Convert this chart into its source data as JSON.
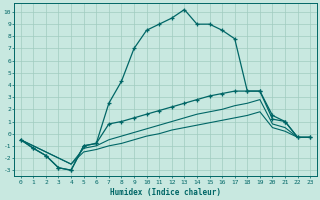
{
  "xlabel": "Humidex (Indice chaleur)",
  "bg_color": "#c8e8e0",
  "line_color": "#006666",
  "grid_color": "#a0ccc0",
  "xlim": [
    -0.5,
    23.5
  ],
  "ylim": [
    -3.5,
    10.7
  ],
  "xticks": [
    0,
    1,
    2,
    3,
    4,
    5,
    6,
    7,
    8,
    9,
    10,
    11,
    12,
    13,
    14,
    15,
    16,
    17,
    18,
    19,
    20,
    21,
    22,
    23
  ],
  "yticks": [
    -3,
    -2,
    -1,
    0,
    1,
    2,
    3,
    4,
    5,
    6,
    7,
    8,
    9,
    10
  ],
  "line1_x": [
    0,
    1,
    2,
    3,
    4,
    5,
    6,
    7,
    8,
    9,
    10,
    11,
    12,
    13,
    14,
    15,
    16,
    17,
    18,
    19,
    20,
    21,
    22,
    23
  ],
  "line1_y": [
    -0.5,
    -1.2,
    -1.8,
    -2.8,
    -3.0,
    -1.0,
    -0.8,
    2.5,
    4.3,
    7.0,
    8.5,
    9.0,
    9.5,
    10.2,
    9.0,
    9.0,
    8.5,
    7.8,
    3.5,
    3.5,
    1.5,
    1.0,
    -0.3,
    -0.3
  ],
  "line2_x": [
    0,
    1,
    2,
    3,
    4,
    5,
    6,
    7,
    8,
    9,
    10,
    11,
    12,
    13,
    14,
    15,
    16,
    17,
    18,
    19,
    20,
    21,
    22,
    23
  ],
  "line2_y": [
    -0.5,
    -1.2,
    -1.8,
    -2.8,
    -3.0,
    -1.0,
    -0.8,
    0.8,
    1.0,
    1.3,
    1.6,
    1.9,
    2.2,
    2.5,
    2.8,
    3.1,
    3.3,
    3.5,
    3.5,
    3.5,
    1.2,
    1.0,
    -0.3,
    -0.3
  ],
  "line3_x": [
    0,
    2,
    4,
    5,
    6,
    7,
    8,
    9,
    10,
    11,
    12,
    13,
    14,
    15,
    16,
    17,
    18,
    19,
    20,
    21,
    22,
    23
  ],
  "line3_y": [
    -0.5,
    -1.5,
    -2.5,
    -1.2,
    -1.0,
    -0.5,
    -0.2,
    0.1,
    0.4,
    0.7,
    1.0,
    1.3,
    1.6,
    1.8,
    2.0,
    2.3,
    2.5,
    2.8,
    0.8,
    0.5,
    -0.3,
    -0.3
  ],
  "line4_x": [
    0,
    2,
    4,
    5,
    6,
    7,
    8,
    9,
    10,
    11,
    12,
    13,
    14,
    15,
    16,
    17,
    18,
    19,
    20,
    21,
    22,
    23
  ],
  "line4_y": [
    -0.5,
    -1.5,
    -2.5,
    -1.5,
    -1.3,
    -1.0,
    -0.8,
    -0.5,
    -0.2,
    0.0,
    0.3,
    0.5,
    0.7,
    0.9,
    1.1,
    1.3,
    1.5,
    1.8,
    0.5,
    0.2,
    -0.3,
    -0.3
  ]
}
